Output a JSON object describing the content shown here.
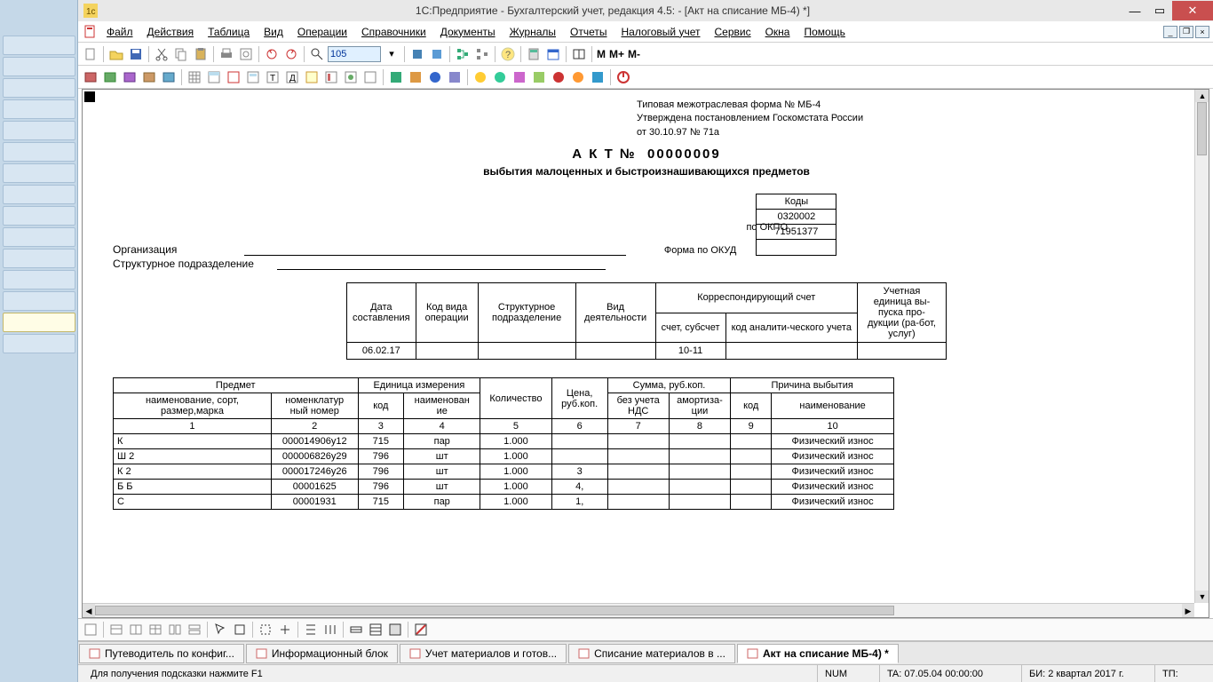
{
  "window": {
    "title": "1С:Предприятие - Бухгалтерский учет, редакция 4.5:                    - [Акт на списание МБ-4)  *]"
  },
  "menu": {
    "items": [
      "Файл",
      "Действия",
      "Таблица",
      "Вид",
      "Операции",
      "Справочники",
      "Документы",
      "Журналы",
      "Отчеты",
      "Налоговый учет",
      "Сервис",
      "Окна",
      "Помощь"
    ]
  },
  "tb1": {
    "search_value": "105"
  },
  "tb1_text": {
    "m": "M",
    "mp": "M+",
    "mm": "M-"
  },
  "doc": {
    "form_line1": "Типовая межотраслевая форма № МБ-4",
    "form_line2": "Утверждена постановлением Госкомстата России",
    "form_line3": "от 30.10.97 № 71а",
    "act_word": "А К Т №",
    "act_no": "00000009",
    "act_sub": "выбытия малоценных и быстроизнашивающихся предметов",
    "org_label": "Организация",
    "dept_label": "Структурное подразделение",
    "codes_title": "Коды",
    "okud_label": "Форма по ОКУД",
    "okud": "0320002",
    "okpo_label": "по ОКПО",
    "okpo": "71951377",
    "meta": {
      "h_date": "Дата составления",
      "h_opcode": "Код вида операции",
      "h_dept": "Структурное подразделение",
      "h_activity": "Вид деятельности",
      "h_corr": "Корреспондирующий    счет",
      "h_acct": "счет, субсчет",
      "h_anal": "код аналити-ческого учета",
      "h_unit": "Учетная единица вы-пуска про-дукции (ра-бот, услуг)",
      "date": "06.02.17",
      "acct": "10-11"
    },
    "table": {
      "h_item": "Предмет",
      "h_unit": "Единица измерения",
      "h_qty": "Количество",
      "h_price": "Цена, руб.коп.",
      "h_sum": "Сумма, руб.коп.",
      "h_reason": "Причина выбытия",
      "h_name": "наименование, сорт, размер,марка",
      "h_nomen": "номенклатур ный номер",
      "h_code": "код",
      "h_uname": "наименован ие",
      "h_novat": "без учета НДС",
      "h_amort": "амортиза-ции",
      "h_rcode": "код",
      "h_rname": "наименование",
      "cols": [
        "1",
        "2",
        "3",
        "4",
        "5",
        "6",
        "7",
        "8",
        "9",
        "10"
      ],
      "rows": [
        {
          "n": "К",
          "nomen": "000014906у12",
          "code": "715",
          "unit": "пар",
          "qty": "1.000",
          "price": "",
          "novat": "",
          "amort": "",
          "reason": "Физический износ"
        },
        {
          "n": "Ш 2",
          "nomen": "000006826у29",
          "code": "796",
          "unit": "шт",
          "qty": "1.000",
          "price": "",
          "novat": "",
          "amort": "",
          "reason": "Физический износ"
        },
        {
          "n": "К 2",
          "nomen": "000017246у26",
          "code": "796",
          "unit": "шт",
          "qty": "1.000",
          "price": "3",
          "novat": "",
          "amort": "",
          "reason": "Физический износ"
        },
        {
          "n": "Б Б",
          "nomen": "00001625",
          "code": "796",
          "unit": "шт",
          "qty": "1.000",
          "price": "4,",
          "novat": "",
          "amort": "",
          "reason": "Физический износ"
        },
        {
          "n": "С",
          "nomen": "00001931",
          "code": "715",
          "unit": "пар",
          "qty": "1.000",
          "price": "1,",
          "novat": "",
          "amort": "",
          "reason": "Физический износ"
        }
      ]
    }
  },
  "tabs": [
    {
      "label": "Путеводитель по конфиг...",
      "active": false
    },
    {
      "label": "Информационный блок",
      "active": false
    },
    {
      "label": "Учет материалов и готов...",
      "active": false
    },
    {
      "label": "Списание материалов в ...",
      "active": false
    },
    {
      "label": "Акт на списание МБ-4)  *",
      "active": true
    }
  ],
  "status": {
    "hint": "Для получения подсказки нажмите F1",
    "num": "NUM",
    "ta": "TA: 07.05.04  00:00:00",
    "bi": "БИ: 2 квартал 2017 г.",
    "tp": "ТП:"
  },
  "colors": {
    "accent": "#c94f4f",
    "panel": "#c5d8e8"
  }
}
